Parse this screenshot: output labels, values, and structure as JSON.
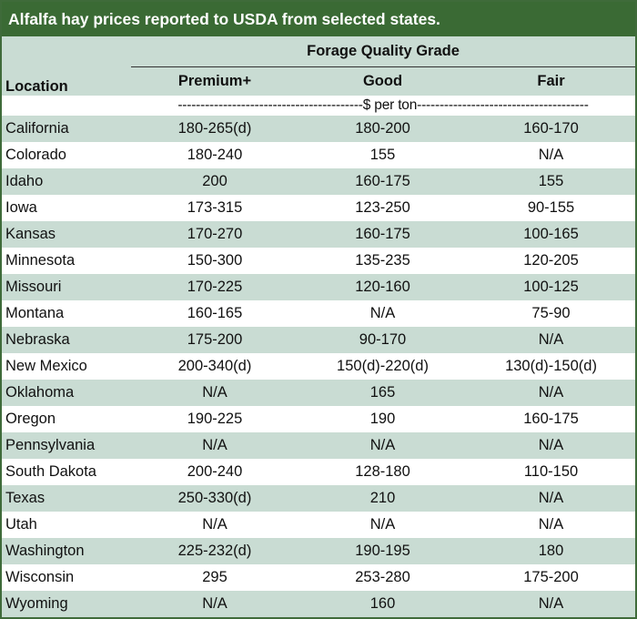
{
  "title": "Alfalfa hay prices reported to USDA from selected states.",
  "header": {
    "group_label": "Forage Quality Grade",
    "location_label": "Location",
    "grades": [
      "Premium+",
      "Good",
      "Fair"
    ]
  },
  "units_label": "-----------------------------------------$ per ton--------------------------------------",
  "colors": {
    "title_bg": "#3a6a34",
    "title_text": "#ffffff",
    "band_green": "#c9dcd3",
    "band_white": "#ffffff",
    "border": "#3f6b3a"
  },
  "rows": [
    {
      "location": "California",
      "premium": "180-265(d)",
      "good": "180-200",
      "fair": "160-170"
    },
    {
      "location": "Colorado",
      "premium": "180-240",
      "good": "155",
      "fair": "N/A"
    },
    {
      "location": "Idaho",
      "premium": "200",
      "good": "160-175",
      "fair": "155"
    },
    {
      "location": "Iowa",
      "premium": "173-315",
      "good": "123-250",
      "fair": "90-155"
    },
    {
      "location": "Kansas",
      "premium": "170-270",
      "good": "160-175",
      "fair": "100-165"
    },
    {
      "location": "Minnesota",
      "premium": "150-300",
      "good": "135-235",
      "fair": "120-205"
    },
    {
      "location": "Missouri",
      "premium": "170-225",
      "good": "120-160",
      "fair": "100-125"
    },
    {
      "location": "Montana",
      "premium": "160-165",
      "good": "N/A",
      "fair": "75-90"
    },
    {
      "location": "Nebraska",
      "premium": "175-200",
      "good": "90-170",
      "fair": "N/A"
    },
    {
      "location": "New Mexico",
      "premium": "200-340(d)",
      "good": "150(d)-220(d)",
      "fair": "130(d)-150(d)"
    },
    {
      "location": "Oklahoma",
      "premium": "N/A",
      "good": "165",
      "fair": "N/A"
    },
    {
      "location": "Oregon",
      "premium": "190-225",
      "good": "190",
      "fair": "160-175"
    },
    {
      "location": "Pennsylvania",
      "premium": "N/A",
      "good": "N/A",
      "fair": "N/A"
    },
    {
      "location": "South Dakota",
      "premium": "200-240",
      "good": "128-180",
      "fair": "110-150"
    },
    {
      "location": "Texas",
      "premium": "250-330(d)",
      "good": "210",
      "fair": "N/A"
    },
    {
      "location": "Utah",
      "premium": "N/A",
      "good": "N/A",
      "fair": "N/A"
    },
    {
      "location": "Washington",
      "premium": "225-232(d)",
      "good": "190-195",
      "fair": "180"
    },
    {
      "location": "Wisconsin",
      "premium": "295",
      "good": "253-280",
      "fair": "175-200"
    },
    {
      "location": "Wyoming",
      "premium": "N/A",
      "good": "160",
      "fair": "N/A"
    }
  ]
}
